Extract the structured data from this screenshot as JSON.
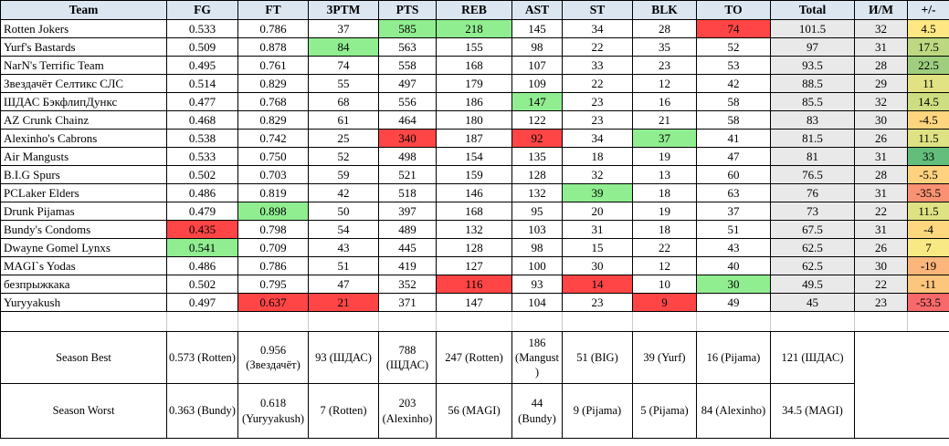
{
  "table": {
    "column_keys": [
      "team",
      "fg",
      "ft",
      "3ptm",
      "pts",
      "reb",
      "ast",
      "st",
      "blk",
      "to",
      "total",
      "im",
      "pm"
    ],
    "columns": [
      "Team",
      "FG",
      "FT",
      "3PTM",
      "PTS",
      "REB",
      "AST",
      "ST",
      "BLK",
      "TO",
      "Total",
      "И/М",
      "+/-"
    ],
    "rows": [
      {
        "name": "Rotten Jokers",
        "values": [
          "0.533",
          "0.786",
          "37",
          "585",
          "218",
          "145",
          "34",
          "28",
          "74",
          "101.5",
          "32",
          "4.5"
        ],
        "fills": {
          "pts": "green",
          "reb": "green",
          "to": "red"
        },
        "pm_color": "#FFE883"
      },
      {
        "name": "Yurf's Bastards",
        "values": [
          "0.509",
          "0.878",
          "84",
          "563",
          "155",
          "98",
          "22",
          "35",
          "52",
          "97",
          "31",
          "17.5"
        ],
        "fills": {
          "3ptm": "green"
        },
        "pm_color": "#BCD880"
      },
      {
        "name": "NarN's Terrific Team",
        "values": [
          "0.495",
          "0.761",
          "74",
          "558",
          "168",
          "107",
          "33",
          "23",
          "53",
          "93.5",
          "28",
          "22.5"
        ],
        "fills": {},
        "pm_color": "#9FCF7E"
      },
      {
        "name": "Звездачёт Селтикс СЛС",
        "values": [
          "0.514",
          "0.829",
          "55",
          "497",
          "179",
          "109",
          "22",
          "12",
          "42",
          "88.5",
          "29",
          "11"
        ],
        "fills": {},
        "pm_color": "#E1E282"
      },
      {
        "name": "ШДАС БэкфлипДункс",
        "values": [
          "0.477",
          "0.768",
          "68",
          "556",
          "186",
          "147",
          "23",
          "16",
          "58",
          "85.5",
          "32",
          "14.5"
        ],
        "fills": {
          "ast": "green"
        },
        "pm_color": "#CDDD81"
      },
      {
        "name": "AZ Crunk Chainz",
        "values": [
          "0.468",
          "0.829",
          "61",
          "464",
          "180",
          "122",
          "23",
          "21",
          "58",
          "83",
          "30",
          "-4.5"
        ],
        "fills": {},
        "pm_color": "#FED57F"
      },
      {
        "name": "Alexinho's Cabrons",
        "values": [
          "0.538",
          "0.742",
          "25",
          "340",
          "187",
          "92",
          "34",
          "37",
          "41",
          "81.5",
          "26",
          "11.5"
        ],
        "fills": {
          "pts": "red",
          "ast": "red",
          "blk": "green"
        },
        "pm_color": "#DEE282"
      },
      {
        "name": "Air Mangusts",
        "values": [
          "0.533",
          "0.750",
          "52",
          "498",
          "154",
          "135",
          "18",
          "19",
          "47",
          "81",
          "31",
          "33"
        ],
        "fills": {},
        "pm_color": "#63BE7B"
      },
      {
        "name": "B.I.G Spurs",
        "values": [
          "0.502",
          "0.703",
          "59",
          "521",
          "159",
          "128",
          "32",
          "13",
          "60",
          "76.5",
          "28",
          "-5.5"
        ],
        "fills": {},
        "pm_color": "#FED27F"
      },
      {
        "name": "PCLaker Elders",
        "values": [
          "0.486",
          "0.819",
          "42",
          "518",
          "146",
          "132",
          "39",
          "18",
          "63",
          "76",
          "31",
          "-35.5"
        ],
        "fills": {
          "st": "green"
        },
        "pm_color": "#FA9173"
      },
      {
        "name": "Drunk Pijamas",
        "values": [
          "0.479",
          "0.898",
          "50",
          "397",
          "168",
          "95",
          "20",
          "19",
          "37",
          "73",
          "22",
          "11.5"
        ],
        "fills": {
          "ft": "green"
        },
        "pm_color": "#DEE282"
      },
      {
        "name": "Bundy's Condoms",
        "values": [
          "0.435",
          "0.798",
          "54",
          "489",
          "132",
          "103",
          "31",
          "18",
          "51",
          "67.5",
          "31",
          "-4"
        ],
        "fills": {
          "fg": "red"
        },
        "pm_color": "#FED680"
      },
      {
        "name": "Dwayne Gomel Lynxs",
        "values": [
          "0.541",
          "0.709",
          "43",
          "445",
          "128",
          "98",
          "15",
          "22",
          "43",
          "62.5",
          "26",
          "7"
        ],
        "fills": {
          "fg": "green"
        },
        "pm_color": "#F8E984"
      },
      {
        "name": "MAGI`s Yodas",
        "values": [
          "0.486",
          "0.786",
          "51",
          "419",
          "127",
          "100",
          "30",
          "12",
          "40",
          "62.5",
          "30",
          "-19"
        ],
        "fills": {},
        "pm_color": "#FCB57A"
      },
      {
        "name": "безпрыжкака",
        "values": [
          "0.502",
          "0.795",
          "47",
          "352",
          "116",
          "93",
          "14",
          "10",
          "30",
          "49.5",
          "22",
          "-11"
        ],
        "fills": {
          "reb": "red",
          "st": "red",
          "to": "green"
        },
        "pm_color": "#FDC67D"
      },
      {
        "name": "Yuryyakush",
        "values": [
          "0.497",
          "0.637",
          "21",
          "371",
          "147",
          "104",
          "23",
          "9",
          "49",
          "45",
          "23",
          "-53.5"
        ],
        "fills": {
          "ft": "red",
          "3ptm": "red",
          "blk": "red"
        },
        "pm_color": "#F8696B"
      }
    ],
    "summary": {
      "best_label": "Season Best",
      "worst_label": "Season Worst",
      "best": [
        "0.573 (Rotten)",
        "0.956 (Звездачёт)",
        "93 (ШДАС)",
        "788 (ЩДАС)",
        "247 (Rotten)",
        "186 (Mangust)",
        "51 (BIG)",
        "39 (Yurf)",
        "16 (Pijama)",
        "121 (ШДАС)"
      ],
      "worst": [
        "0.363 (Bundy)",
        "0.618 (Yuryyakush)",
        "7 (Rotten)",
        "203 (Alexinho)",
        "56 (MAGI)",
        "44 (Bundy)",
        "9 (Pijama)",
        "5 (Pijama)",
        "84 (Alexinho)",
        "34.5 (MAGI)"
      ]
    }
  },
  "colors": {
    "highlight_green": "#90EE90",
    "highlight_red": "#FF4545",
    "header_bg": "#DCE6F1",
    "computed_gray": "#E9E9E9"
  }
}
